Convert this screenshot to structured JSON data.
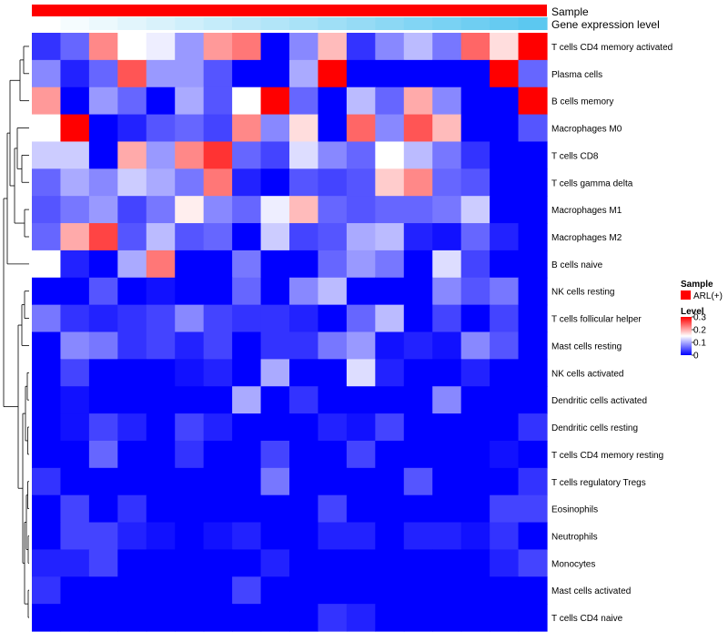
{
  "chart_data": {
    "type": "heatmap",
    "title": "",
    "annotations": [
      {
        "name": "Sample",
        "color": "#ff0000"
      },
      {
        "name": "Gene expression level",
        "gradient": [
          "#ffffff",
          "#5cc8f0"
        ]
      }
    ],
    "rows": [
      "T cells CD4 memory activated",
      "Plasma cells",
      "B cells memory",
      "Macrophages M0",
      "T cells CD8",
      "T cells gamma delta",
      "Macrophages M1",
      "Macrophages M2",
      "B cells naive",
      "NK cells resting",
      "T cells follicular helper",
      "Mast cells resting",
      "NK cells activated",
      "Dendritic cells activated",
      "Dendritic cells resting",
      "T cells CD4 memory resting",
      "T cells regulatory  Tregs",
      "Eosinophils",
      "Neutrophils",
      "Monocytes",
      "Mast cells activated",
      "T cells CD4 naive"
    ],
    "n_columns": 18,
    "values": [
      [
        0.03,
        0.06,
        0.22,
        0.15,
        0.14,
        0.09,
        0.21,
        0.23,
        0.0,
        0.08,
        0.19,
        0.03,
        0.08,
        0.11,
        0.07,
        0.24,
        0.17,
        0.3
      ],
      [
        0.08,
        0.02,
        0.06,
        0.25,
        0.09,
        0.09,
        0.05,
        0.0,
        0.0,
        0.1,
        0.3,
        0.0,
        0.0,
        0.0,
        0.0,
        0.0,
        0.3,
        0.06
      ],
      [
        0.21,
        0.0,
        0.09,
        0.06,
        0.0,
        0.1,
        0.05,
        0.15,
        0.3,
        0.06,
        0.0,
        0.11,
        0.06,
        0.2,
        0.08,
        0.0,
        0.0,
        0.3
      ],
      [
        0.15,
        0.3,
        0.0,
        0.02,
        0.05,
        0.06,
        0.04,
        0.22,
        0.08,
        0.17,
        0.0,
        0.24,
        0.08,
        0.25,
        0.19,
        0.0,
        0.0,
        0.05
      ],
      [
        0.12,
        0.12,
        0.0,
        0.2,
        0.09,
        0.22,
        0.27,
        0.06,
        0.04,
        0.13,
        0.08,
        0.06,
        0.15,
        0.11,
        0.07,
        0.03,
        0.0,
        0.0
      ],
      [
        0.06,
        0.1,
        0.08,
        0.12,
        0.1,
        0.07,
        0.23,
        0.02,
        0.0,
        0.05,
        0.04,
        0.05,
        0.18,
        0.22,
        0.06,
        0.05,
        0.0,
        0.0
      ],
      [
        0.05,
        0.07,
        0.09,
        0.04,
        0.07,
        0.16,
        0.08,
        0.06,
        0.14,
        0.19,
        0.06,
        0.05,
        0.06,
        0.06,
        0.07,
        0.12,
        0.0,
        0.0
      ],
      [
        0.06,
        0.2,
        0.26,
        0.05,
        0.11,
        0.05,
        0.06,
        0.0,
        0.12,
        0.04,
        0.05,
        0.1,
        0.11,
        0.02,
        0.01,
        0.06,
        0.02,
        0.0
      ],
      [
        0.15,
        0.02,
        0.0,
        0.1,
        0.23,
        0.0,
        0.0,
        0.07,
        0.0,
        0.0,
        0.06,
        0.09,
        0.07,
        0.0,
        0.13,
        0.04,
        0.0,
        0.0
      ],
      [
        0.0,
        0.0,
        0.05,
        0.0,
        0.01,
        0.0,
        0.0,
        0.06,
        0.0,
        0.08,
        0.11,
        0.0,
        0.0,
        0.0,
        0.08,
        0.05,
        0.07,
        0.0
      ],
      [
        0.07,
        0.03,
        0.02,
        0.03,
        0.04,
        0.08,
        0.04,
        0.03,
        0.03,
        0.02,
        0.0,
        0.06,
        0.11,
        0.0,
        0.04,
        0.0,
        0.04,
        0.0
      ],
      [
        0.0,
        0.08,
        0.07,
        0.03,
        0.04,
        0.02,
        0.04,
        0.0,
        0.03,
        0.03,
        0.07,
        0.09,
        0.01,
        0.02,
        0.01,
        0.08,
        0.05,
        0.0
      ],
      [
        0.0,
        0.04,
        0.0,
        0.0,
        0.0,
        0.01,
        0.02,
        0.0,
        0.1,
        0.0,
        0.0,
        0.13,
        0.02,
        0.0,
        0.0,
        0.02,
        0.0,
        0.0
      ],
      [
        0.0,
        0.01,
        0.0,
        0.0,
        0.0,
        0.0,
        0.0,
        0.1,
        0.0,
        0.03,
        0.0,
        0.0,
        0.0,
        0.0,
        0.08,
        0.0,
        0.0,
        0.0
      ],
      [
        0.0,
        0.01,
        0.04,
        0.02,
        0.0,
        0.04,
        0.02,
        0.0,
        0.0,
        0.0,
        0.02,
        0.01,
        0.04,
        0.0,
        0.0,
        0.0,
        0.0,
        0.03
      ],
      [
        0.0,
        0.0,
        0.06,
        0.0,
        0.0,
        0.03,
        0.0,
        0.0,
        0.04,
        0.0,
        0.0,
        0.04,
        0.0,
        0.0,
        0.0,
        0.0,
        0.01,
        0.0
      ],
      [
        0.03,
        0.0,
        0.0,
        0.0,
        0.0,
        0.0,
        0.0,
        0.0,
        0.07,
        0.0,
        0.0,
        0.0,
        0.0,
        0.05,
        0.0,
        0.0,
        0.0,
        0.03
      ],
      [
        0.0,
        0.04,
        0.0,
        0.03,
        0.0,
        0.0,
        0.0,
        0.0,
        0.0,
        0.0,
        0.04,
        0.0,
        0.0,
        0.0,
        0.0,
        0.0,
        0.04,
        0.04
      ],
      [
        0.0,
        0.04,
        0.04,
        0.02,
        0.01,
        0.0,
        0.01,
        0.02,
        0.0,
        0.0,
        0.02,
        0.02,
        0.0,
        0.02,
        0.02,
        0.01,
        0.03,
        0.0
      ],
      [
        0.02,
        0.02,
        0.04,
        0.0,
        0.0,
        0.0,
        0.0,
        0.0,
        0.02,
        0.0,
        0.0,
        0.0,
        0.0,
        0.0,
        0.0,
        0.0,
        0.02,
        0.04
      ],
      [
        0.03,
        0.0,
        0.0,
        0.0,
        0.0,
        0.0,
        0.0,
        0.04,
        0.0,
        0.0,
        0.0,
        0.0,
        0.0,
        0.0,
        0.0,
        0.0,
        0.0,
        0.0
      ],
      [
        0.0,
        0.0,
        0.0,
        0.0,
        0.0,
        0.0,
        0.0,
        0.0,
        0.0,
        0.0,
        0.03,
        0.02,
        0.0,
        0.0,
        0.0,
        0.0,
        0.0,
        0.0
      ]
    ],
    "color_scale": {
      "stops": [
        {
          "value": 0,
          "color": "#0000ff"
        },
        {
          "value": 0.15,
          "color": "#ffffff"
        },
        {
          "value": 0.3,
          "color": "#ff0000"
        }
      ]
    },
    "legend": {
      "sample_title": "Sample",
      "sample_item": "ARL(+)",
      "level_title": "Level",
      "level_ticks": [
        "0.3",
        "0.2",
        "0.1",
        "0"
      ],
      "level_tick_values": [
        0.3,
        0.2,
        0.1,
        0
      ],
      "range": [
        0,
        0.3
      ]
    },
    "dendrogram": "rows"
  }
}
